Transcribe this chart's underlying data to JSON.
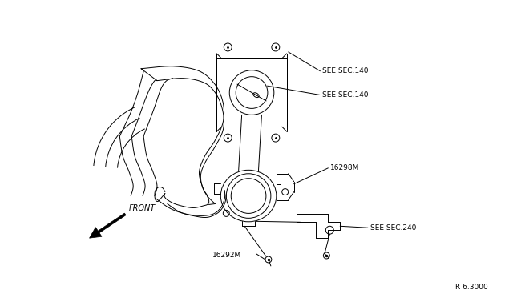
{
  "background_color": "#ffffff",
  "line_color": "#000000",
  "text_color": "#000000",
  "fig_width": 6.4,
  "fig_height": 3.72,
  "dpi": 100,
  "labels": {
    "see_sec_140_top": "SEE SEC.140",
    "see_sec_140_bot": "SEE SEC.140",
    "part_16298M": "16298M",
    "part_16292M": "16292M",
    "see_sec_240": "SEE SEC.240",
    "front": "FRONT",
    "ref": "R 6.3000"
  }
}
